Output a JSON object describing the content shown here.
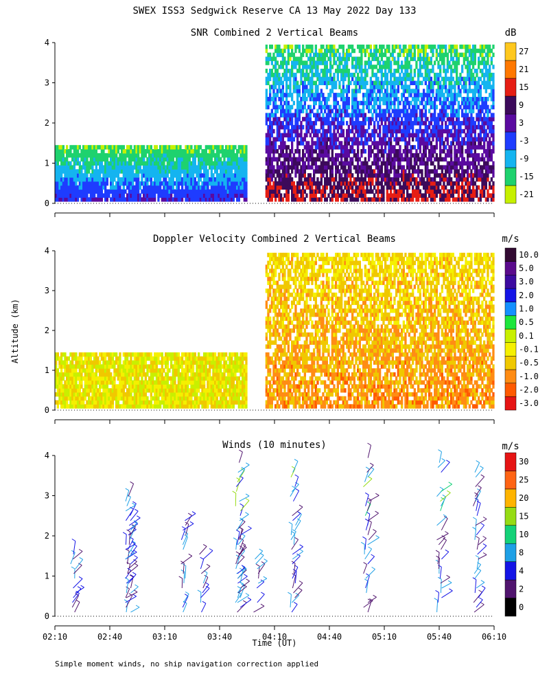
{
  "title": "SWEX ISS3 Sedgwick Reserve CA  13 May 2022 Day 133",
  "ylabel": "Altitude (km)",
  "xlabel": "Time (UT)",
  "footnote": "Simple moment winds, no ship navigation correction applied",
  "x_ticks": [
    "02:10",
    "02:40",
    "03:10",
    "03:40",
    "04:10",
    "04:40",
    "05:10",
    "05:40",
    "06:10"
  ],
  "y_ticks": [
    "0",
    "1",
    "2",
    "3",
    "4"
  ],
  "colors": {
    "snr": [
      "#c6f000",
      "#1ed26e",
      "#14b4f0",
      "#1e3cff",
      "#5a0aa0",
      "#3c0a5a",
      "#e61e14",
      "#ff7800",
      "#ffc81e"
    ],
    "doppler": [
      "#e61414",
      "#ff5a00",
      "#ff8c14",
      "#f0c800",
      "#f5f000",
      "#c8f000",
      "#1ee63c",
      "#1490ff",
      "#1414e6",
      "#3c0aa0",
      "#5a0a8c",
      "#320a32"
    ],
    "winds": [
      "#000000",
      "#50146e",
      "#1414e6",
      "#1ea0e6",
      "#14d278",
      "#96dc14",
      "#ffb400",
      "#ff6414",
      "#e61414"
    ]
  },
  "chart_data": [
    {
      "type": "heatmap",
      "title": "SNR Combined 2 Vertical Beams",
      "units": "dB",
      "x_range": [
        "02:10",
        "06:10"
      ],
      "ylim": [
        0,
        4
      ],
      "colorbar": [
        "-21",
        "-15",
        "-9",
        "-3",
        "3",
        "9",
        "15",
        "21",
        "27"
      ],
      "summary": [
        {
          "time": "02:10-03:55",
          "top_km": 1.4,
          "snr_dB": [
            -15,
            -3
          ]
        },
        {
          "time": "04:05-06:10",
          "top_km": 3.9,
          "snr_dB": [
            -21,
            15
          ]
        }
      ]
    },
    {
      "type": "heatmap",
      "title": "Doppler Velocity Combined 2 Vertical Beams",
      "units": "m/s",
      "x_range": [
        "02:10",
        "06:10"
      ],
      "ylim": [
        0,
        4
      ],
      "colorbar": [
        "-3.0",
        "-2.0",
        "-1.0",
        "-0.5",
        "-0.1",
        "0.1",
        "0.5",
        "1.0",
        "2.0",
        "3.0",
        "5.0",
        "10.0"
      ],
      "summary": [
        {
          "time": "02:10-03:55",
          "top_km": 1.4,
          "velocity_ms": [
            -0.5,
            0.5
          ]
        },
        {
          "time": "04:05-06:10",
          "top_km": 3.9,
          "velocity_ms": [
            -2.0,
            0.5
          ]
        }
      ]
    },
    {
      "type": "scatter",
      "title": "Winds (10 minutes)",
      "units": "m/s",
      "x_range": [
        "02:10",
        "06:10"
      ],
      "ylim": [
        0,
        4
      ],
      "colorbar": [
        "0",
        "2",
        "4",
        "8",
        "10",
        "15",
        "20",
        "25",
        "30"
      ],
      "profiles": [
        {
          "time": "02:20",
          "top_km": 1.7
        },
        {
          "time": "02:50",
          "top_km": 2.4
        },
        {
          "time": "02:50",
          "top_km": 3.1
        },
        {
          "time": "03:20",
          "top_km": 2.4
        },
        {
          "time": "03:30",
          "top_km": 1.6
        },
        {
          "time": "03:50",
          "top_km": 3.9
        },
        {
          "time": "03:50",
          "top_km": 2.2
        },
        {
          "time": "04:00",
          "top_km": 1.5
        },
        {
          "time": "04:20",
          "top_km": 3.9
        },
        {
          "time": "05:00",
          "top_km": 4.0
        },
        {
          "time": "05:40",
          "top_km": 4.0
        },
        {
          "time": "06:00",
          "top_km": 3.9
        }
      ]
    }
  ]
}
